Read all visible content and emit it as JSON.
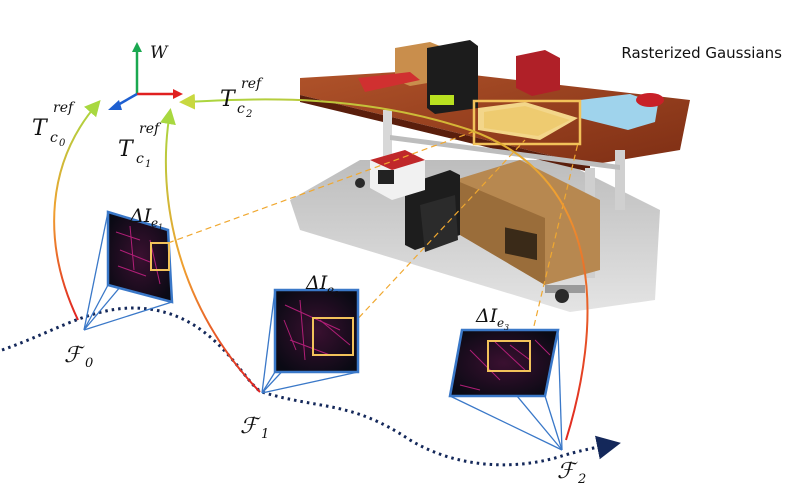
{
  "scene_label": "Rasterized Gaussians",
  "world_frame": {
    "symbol": "W"
  },
  "transforms": [
    {
      "base": "T",
      "sub": "c",
      "subsub": "0",
      "sup": "ref"
    },
    {
      "base": "T",
      "sub": "c",
      "subsub": "1",
      "sup": "ref"
    },
    {
      "base": "T",
      "sub": "c",
      "subsub": "2",
      "sup": "ref"
    }
  ],
  "event_patches": [
    {
      "base": "ΔI",
      "sub": "e",
      "subsub": "1"
    },
    {
      "base": "ΔI",
      "sub": "e",
      "subsub": "2"
    },
    {
      "base": "ΔI",
      "sub": "e",
      "subsub": "3"
    }
  ],
  "frames": [
    {
      "symbol": "ℱ",
      "sub": "0"
    },
    {
      "symbol": "ℱ",
      "sub": "1"
    },
    {
      "symbol": "ℱ",
      "sub": "2"
    }
  ],
  "colors": {
    "trajectory": "#14285a",
    "frame_border": "#3a78c8",
    "highlight_box": "#f2c25a",
    "projection_dash": "#f0a830",
    "axis_x": "#e02020",
    "axis_y": "#1aa850",
    "axis_z": "#1e5fd0",
    "transform_start": "#e02020",
    "transform_end": "#a8d840"
  }
}
